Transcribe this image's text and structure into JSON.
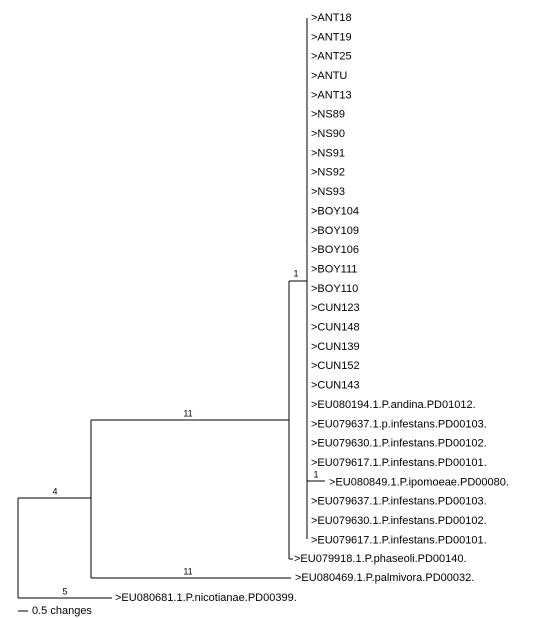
{
  "tree": {
    "leaves": [
      ">ANT18",
      ">ANT19",
      ">ANT25",
      ">ANTU",
      ">ANT13",
      ">NS89",
      ">NS90",
      ">NS91",
      ">NS92",
      ">NS93",
      ">BOY104",
      ">BOY109",
      ">BOY106",
      ">BOY111",
      ">BOY110",
      ">CUN123",
      ">CUN148",
      ">CUN139",
      ">CUN152",
      ">CUN143",
      ">EU080194.1.P.andina.PD01012.",
      ">EU079637.1.p.infestans.PD00103.",
      ">EU079630.1.P.infestans.PD00102.",
      ">EU079617.1.P.infestans.PD00101.",
      ">EU080849.1.P.ipomoeae.PD00080.",
      ">EU079637.1.P.infestans.PD00103.",
      ">EU079630.1.P.infestans.PD00102.",
      ">EU079617.1.P.infestans.PD00101.",
      ">EU079918.1.P.phaseoli.PD00140.",
      ">EU080469.1.P.palmivora.PD00032.",
      ">EU080681.1.P.nicotianae.PD00399."
    ],
    "support": [
      "1",
      "1",
      "11",
      "11",
      "4",
      "5"
    ],
    "scale_label": "0.5 changes"
  }
}
